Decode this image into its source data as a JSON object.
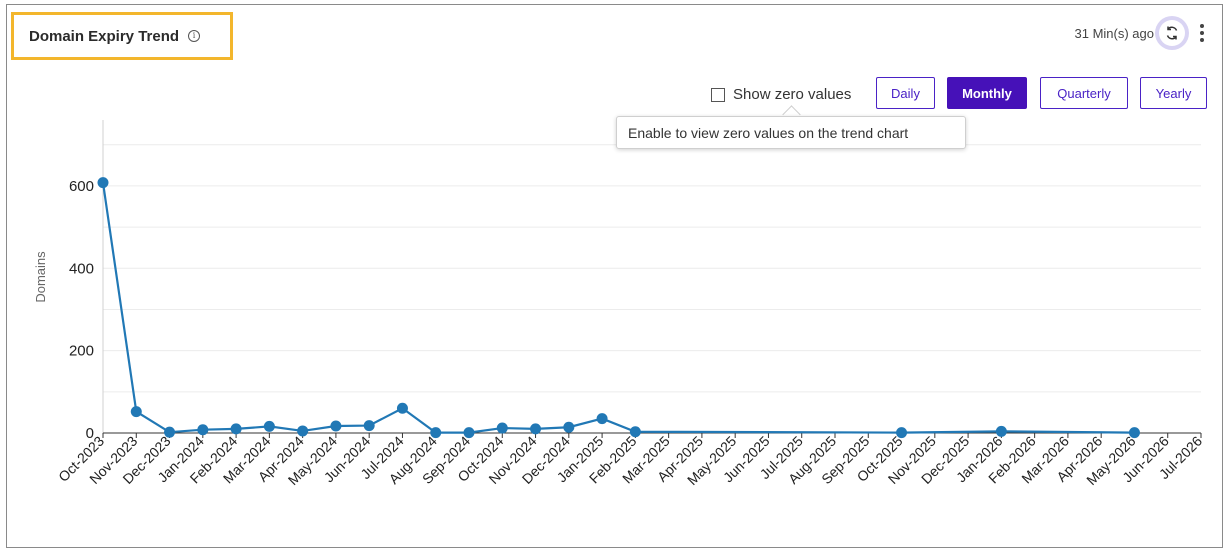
{
  "widget": {
    "title": "Domain Expiry Trend",
    "info_glyph": "i",
    "updated": "31 Min(s) ago",
    "show_zero_label": "Show zero values",
    "tooltip": "Enable to view zero values on the trend chart",
    "periods": [
      "Daily",
      "Monthly",
      "Quarterly",
      "Yearly"
    ],
    "active_period": "Monthly"
  },
  "colors": {
    "accent": "#4611b8",
    "highlight": "#f3b62c",
    "series": "#2178b5"
  },
  "chart_data": {
    "type": "line",
    "title": "",
    "xlabel": "",
    "ylabel": "Domains",
    "ylim": [
      0,
      760
    ],
    "yticks": [
      0,
      200,
      400,
      600
    ],
    "grid": true,
    "categories": [
      "Oct-2023",
      "Nov-2023",
      "Dec-2023",
      "Jan-2024",
      "Feb-2024",
      "Mar-2024",
      "Apr-2024",
      "May-2024",
      "Jun-2024",
      "Jul-2024",
      "Aug-2024",
      "Sep-2024",
      "Oct-2024",
      "Nov-2024",
      "Dec-2024",
      "Jan-2025",
      "Feb-2025",
      "Mar-2025",
      "Apr-2025",
      "May-2025",
      "Jun-2025",
      "Jul-2025",
      "Aug-2025",
      "Sep-2025",
      "Oct-2025",
      "Nov-2025",
      "Dec-2025",
      "Jan-2026",
      "Feb-2026",
      "Mar-2026",
      "Apr-2026",
      "May-2026",
      "Jun-2026",
      "Jul-2026"
    ],
    "series": [
      {
        "values": [
          608,
          52,
          2,
          8,
          10,
          16,
          5,
          17,
          18,
          60,
          1,
          1,
          12,
          10,
          14,
          35,
          3,
          null,
          null,
          null,
          null,
          null,
          null,
          null,
          1,
          null,
          null,
          4,
          null,
          null,
          null,
          1,
          null,
          null
        ]
      }
    ]
  }
}
